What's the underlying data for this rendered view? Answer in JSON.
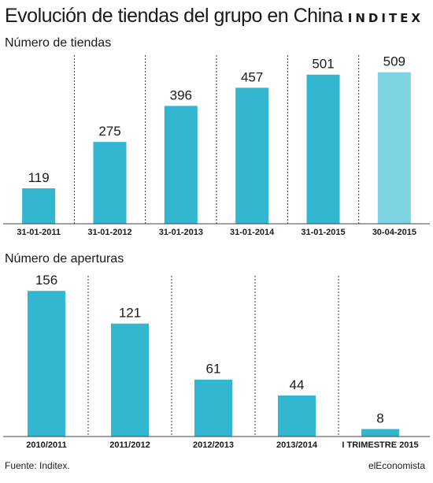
{
  "header": {
    "title": "Evolución de tiendas del grupo en China",
    "brand": "INDITEX"
  },
  "footer": {
    "source": "Fuente: Inditex.",
    "publisher": "elEconomista"
  },
  "colors": {
    "bar": "#33b6cf",
    "bar_highlight": "#7ed3e2",
    "divider": "#333333"
  },
  "chart_data": [
    {
      "type": "bar",
      "title": "Número de tiendas",
      "categories": [
        "31-01-2011",
        "31-01-2012",
        "31-01-2013",
        "31-01-2014",
        "31-01-2015",
        "30-04-2015"
      ],
      "values": [
        119,
        275,
        396,
        457,
        501,
        509
      ],
      "highlight_index": 5,
      "ylim": [
        0,
        540
      ],
      "grid": false,
      "data_labels": true
    },
    {
      "type": "bar",
      "title": "Número de aperturas",
      "categories": [
        "2010/2011",
        "2011/2012",
        "2012/2013",
        "2013/2014",
        "I TRIMESTRE 2015"
      ],
      "values": [
        156,
        121,
        61,
        44,
        8
      ],
      "ylim": [
        0,
        168
      ],
      "grid": false,
      "data_labels": true
    }
  ]
}
